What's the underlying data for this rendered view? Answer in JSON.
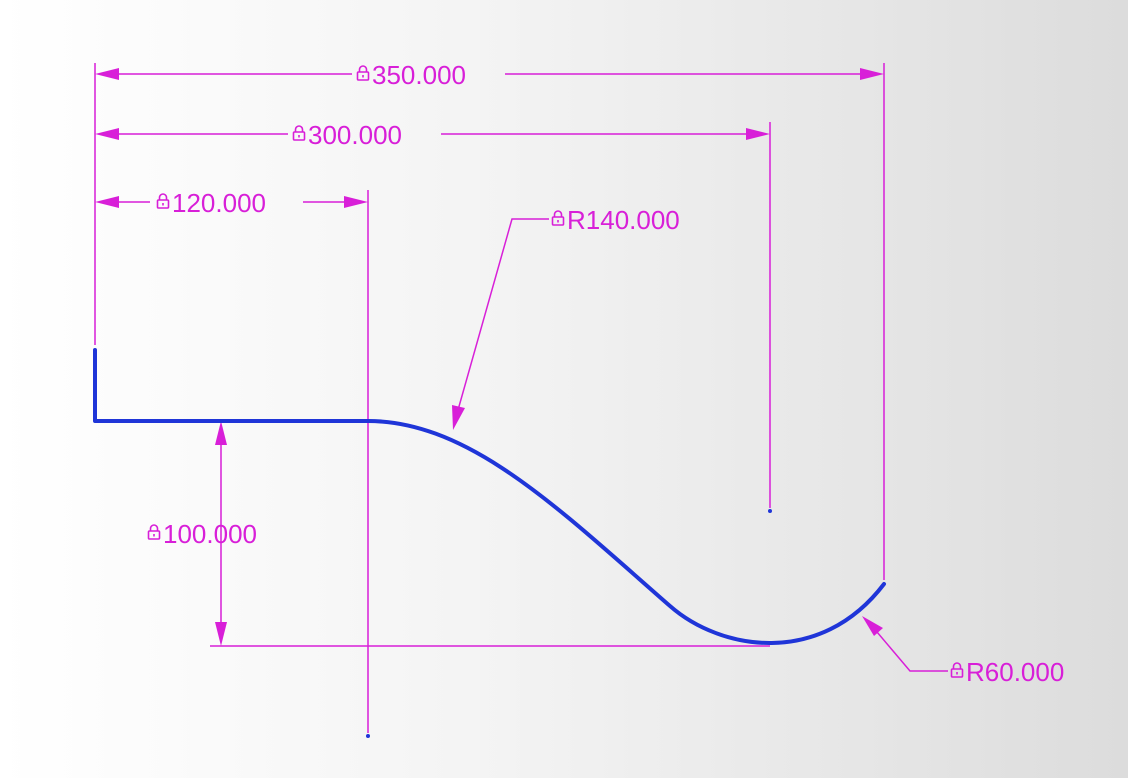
{
  "colors": {
    "dimension": "#d81fd8",
    "geometry": "#1f35d8"
  },
  "dimensions": {
    "horizontal_350": "350.000",
    "horizontal_300": "300.000",
    "horizontal_120": "120.000",
    "vertical_100": "100.000",
    "radius_140": "R140.000",
    "radius_60": "R60.000"
  },
  "icons": {
    "dimension_lock": "lock-icon"
  }
}
